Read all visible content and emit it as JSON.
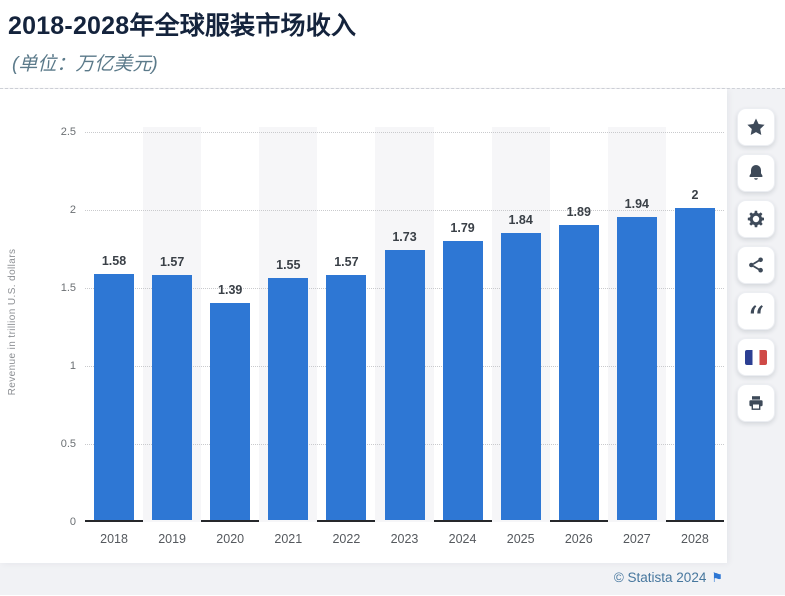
{
  "header": {
    "title": "2018-2028年全球服装市场收入",
    "subtitle": "(单位：万亿美元)"
  },
  "chart_data": {
    "type": "bar",
    "title": "2018-2028年全球服装市场收入",
    "unit_note": "(单位：万亿美元)",
    "categories": [
      "2018",
      "2019",
      "2020",
      "2021",
      "2022",
      "2023",
      "2024",
      "2025",
      "2026",
      "2027",
      "2028"
    ],
    "values": [
      1.58,
      1.57,
      1.39,
      1.55,
      1.57,
      1.73,
      1.79,
      1.84,
      1.89,
      1.94,
      2
    ],
    "bar_labels": [
      "1.58",
      "1.57",
      "1.39",
      "1.55",
      "1.57",
      "1.73",
      "1.79",
      "1.84",
      "1.89",
      "1.94",
      "2"
    ],
    "xlabel": "",
    "ylabel": "Revenue in trillion U.S. dollars",
    "yticks": [
      "0",
      "0.5",
      "1",
      "1.5",
      "2",
      "2.5"
    ],
    "ytick_values": [
      0,
      0.5,
      1,
      1.5,
      2,
      2.5
    ],
    "ylim": [
      0,
      2.5
    ],
    "grid": "horizontal-dotted",
    "legend": "none",
    "stripe_columns": "alternating, behind 2019/2021/2023/2025/2027",
    "colors": {
      "bar": "#2e77d4",
      "stripe": "#f6f6f8",
      "gridline": "#c9cacd",
      "axis_line": "#26282b",
      "value_label": "#3a4047",
      "tick_label": "#6b6f73",
      "x_label": "#55595e",
      "axis_title": "#8d9094"
    }
  },
  "toolbar": {
    "buttons": [
      {
        "icon": "star-icon",
        "name": "favorite"
      },
      {
        "icon": "bell-icon",
        "name": "alerts"
      },
      {
        "icon": "gear-icon",
        "name": "settings"
      },
      {
        "icon": "share-icon",
        "name": "share"
      },
      {
        "icon": "quote-icon",
        "name": "cite"
      },
      {
        "icon": "french-flag-icon",
        "name": "language-french"
      },
      {
        "icon": "printer-icon",
        "name": "print"
      }
    ]
  },
  "footer": {
    "credit": "© Statista 2024",
    "flag_icon": "⚑"
  }
}
